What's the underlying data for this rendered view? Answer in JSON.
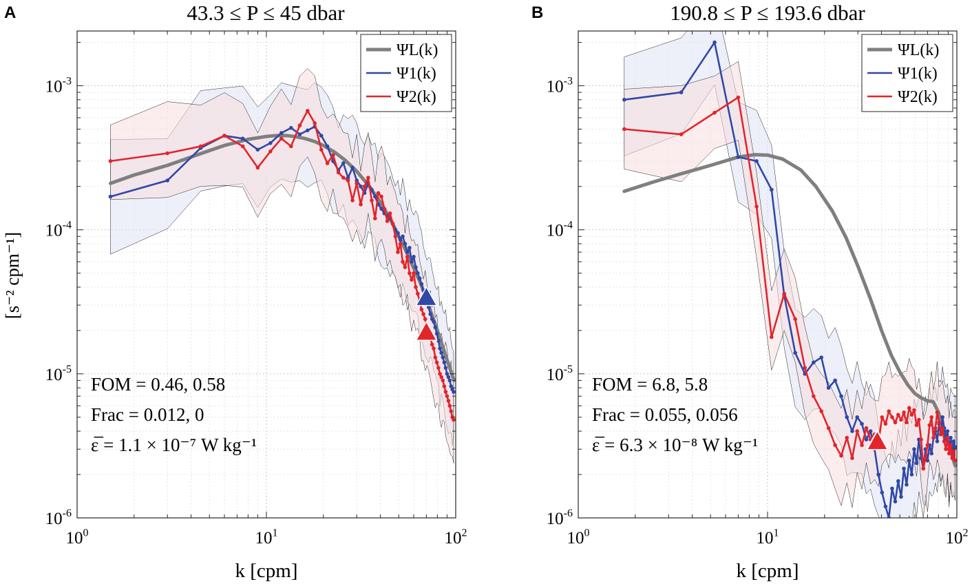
{
  "colors": {
    "model": "#7f7f7f",
    "psi1": "#3048a8",
    "psi2": "#e3242b",
    "ci1_fill": "#dfe2f4",
    "ci2_fill": "#f8dede",
    "text": "#000000"
  },
  "axis": {
    "xlabel": "k  [cpm]",
    "ylabel": "[s⁻² cpm⁻¹]"
  },
  "chart_data": [
    {
      "type": "line",
      "panel_letter": "A",
      "title": "43.3 ≤ P ≤ 45 dbar",
      "xscale": "log",
      "yscale": "log",
      "xlim": [
        1,
        100
      ],
      "ylim": [
        1e-06,
        0.0024
      ],
      "xticks": [
        "10^0",
        "10^1",
        "10^2"
      ],
      "yticks": [
        "10^-6",
        "10^-5",
        "10^-4",
        "10^-3"
      ],
      "legend_position": "top-right",
      "legend": [
        "ΨL(k)",
        "Ψ1(k)",
        "Ψ2(k)"
      ],
      "annotations": [
        "FOM = 0.46,  0.58",
        "Frac = 0.012,  0",
        "ε̅ = 1.1 × 10⁻⁷ W kg⁻¹"
      ],
      "model": {
        "x": [
          1.5,
          2,
          3,
          4,
          5,
          6,
          7,
          8,
          9,
          10,
          11,
          12,
          13,
          14,
          16,
          18,
          20,
          23,
          26,
          30,
          35,
          40,
          45,
          50,
          55,
          60,
          65,
          70,
          80,
          90,
          98
        ],
        "y": [
          0.00021,
          0.00024,
          0.00028,
          0.00032,
          0.000355,
          0.000385,
          0.000405,
          0.000425,
          0.000435,
          0.000445,
          0.00045,
          0.000452,
          0.00045,
          0.000445,
          0.00043,
          0.00041,
          0.000385,
          0.000345,
          0.000305,
          0.000255,
          0.0002,
          0.000155,
          0.00012,
          9e-05,
          7e-05,
          5.4e-05,
          4.3e-05,
          3.3e-05,
          2e-05,
          1.25e-05,
          9e-06
        ]
      },
      "psi1": {
        "x": [
          1.5,
          3,
          4.5,
          6,
          7.5,
          9,
          10.5,
          12,
          13.5,
          15,
          16.5,
          18,
          19.5,
          21,
          22.5,
          24,
          25.5,
          27,
          28.5,
          30,
          31.5,
          33,
          34.5,
          36,
          37.5,
          39,
          40.5,
          42,
          43.5,
          45,
          46.5,
          48,
          49.5,
          51,
          52.5,
          54,
          55.5,
          57,
          58.5,
          60,
          61.5,
          63,
          64.5,
          66,
          67.5,
          69,
          70.5,
          72,
          73.5,
          75,
          76.5,
          78,
          79.5,
          81,
          82.5,
          84,
          85.5,
          87,
          88.5,
          90,
          91.5,
          93,
          94.5,
          96,
          97.5
        ],
        "y": [
          0.00017,
          0.00022,
          0.00037,
          0.00045,
          0.00043,
          0.00036,
          0.0004,
          0.00047,
          0.00051,
          0.00046,
          0.00049,
          0.00052,
          0.00045,
          0.00038,
          0.0003,
          0.00026,
          0.00029,
          0.00023,
          0.00027,
          0.00022,
          0.0002,
          0.00018,
          0.00021,
          0.00019,
          0.00017,
          0.00015,
          0.00014,
          0.00013,
          0.000125,
          0.00012,
          0.00011,
          0.0001,
          9.5e-05,
          8.5e-05,
          9e-05,
          8e-05,
          7e-05,
          7.5e-05,
          6e-05,
          6.5e-05,
          5.5e-05,
          5e-05,
          4.6e-05,
          4.2e-05,
          3.8e-05,
          3.4e-05,
          3.2e-05,
          2.9e-05,
          2.6e-05,
          2.4e-05,
          2.3e-05,
          2.1e-05,
          1.9e-05,
          1.7e-05,
          1.5e-05,
          1.4e-05,
          1.3e-05,
          1.2e-05,
          1.1e-05,
          1e-05,
          9.5e-06,
          9e-06,
          8.2e-06,
          7.8e-06,
          7.5e-06
        ]
      },
      "psi2": {
        "x": [
          1.5,
          3,
          4.5,
          6,
          7.5,
          9,
          10.5,
          12,
          13.5,
          15,
          16.5,
          18,
          19.5,
          21,
          22.5,
          24,
          25.5,
          27,
          28.5,
          30,
          31.5,
          33,
          34.5,
          36,
          37.5,
          39,
          40.5,
          42,
          43.5,
          45,
          46.5,
          48,
          49.5,
          51,
          52.5,
          54,
          55.5,
          57,
          58.5,
          60,
          61.5,
          63,
          64.5,
          66,
          67.5,
          69,
          70.5,
          72,
          73.5,
          75,
          76.5,
          78,
          79.5,
          81,
          82.5,
          84,
          85.5,
          87,
          88.5,
          90,
          91.5,
          93,
          94.5,
          96,
          97.5
        ],
        "y": [
          0.0003,
          0.00034,
          0.00038,
          0.00045,
          0.00038,
          0.00027,
          0.00035,
          0.00043,
          0.00038,
          0.00053,
          0.00067,
          0.00055,
          0.00036,
          0.00029,
          0.00033,
          0.00025,
          0.00023,
          0.00022,
          0.00016,
          0.00021,
          0.00015,
          0.0002,
          0.00023,
          0.00016,
          0.00012,
          0.00018,
          0.00017,
          0.00014,
          0.000115,
          0.00013,
          0.00011,
          9e-05,
          7e-05,
          8e-05,
          6e-05,
          5.5e-05,
          6.5e-05,
          5e-05,
          4.5e-05,
          5e-05,
          4e-05,
          3.6e-05,
          3.2e-05,
          2.8e-05,
          2.6e-05,
          2.4e-05,
          2.1e-05,
          1.9e-05,
          1.8e-05,
          1.6e-05,
          1.5e-05,
          1.3e-05,
          1.2e-05,
          1.1e-05,
          1e-05,
          9.5e-06,
          9e-06,
          8.2e-06,
          7.5e-06,
          7e-06,
          6.5e-06,
          6e-06,
          5.5e-06,
          5e-06,
          4.8e-06
        ]
      },
      "markers": [
        {
          "series": "psi1",
          "x": 70,
          "y": 3.4e-05
        },
        {
          "series": "psi2",
          "x": 70,
          "y": 1.95e-05
        }
      ]
    },
    {
      "type": "line",
      "panel_letter": "B",
      "title": "190.8 ≤ P ≤ 193.6 dbar",
      "xscale": "log",
      "yscale": "log",
      "xlim": [
        1,
        100
      ],
      "ylim": [
        1e-06,
        0.0024
      ],
      "xticks": [
        "10^0",
        "10^1",
        "10^2"
      ],
      "yticks": [
        "10^-6",
        "10^-5",
        "10^-4",
        "10^-3"
      ],
      "legend_position": "top-right",
      "legend": [
        "ΨL(k)",
        "Ψ1(k)",
        "Ψ2(k)"
      ],
      "annotations": [
        "FOM = 6.8,  5.8",
        "Frac = 0.055,  0.056",
        "ε̅ = 6.3 × 10⁻⁸ W kg⁻¹"
      ],
      "model": {
        "x": [
          1.75,
          2.5,
          3.5,
          5,
          7,
          8.5,
          10,
          12,
          15,
          18,
          22,
          26,
          30,
          35,
          40,
          45,
          50,
          55,
          60,
          65,
          70,
          75,
          80,
          90,
          98
        ],
        "y": [
          0.000185,
          0.000215,
          0.000245,
          0.00028,
          0.00032,
          0.000332,
          0.00033,
          0.00031,
          0.00026,
          0.0002,
          0.000135,
          8.8e-05,
          5.6e-05,
          3.3e-05,
          2e-05,
          1.35e-05,
          1.03e-05,
          8.4e-06,
          7.3e-06,
          6.8e-06,
          6.5e-06,
          6.4e-06,
          5.4e-06,
          3.3e-06,
          2.3e-06
        ]
      },
      "psi1": {
        "x": [
          1.75,
          3.5,
          5.25,
          7,
          8.75,
          10.5,
          12.25,
          14,
          15.75,
          17.5,
          19.25,
          21,
          22.75,
          24.5,
          26.25,
          28,
          29.75,
          31.5,
          33.25,
          35,
          36.75,
          38.5,
          40.25,
          42,
          43.75,
          45.5,
          47.25,
          49,
          50.75,
          52.5,
          54.25,
          56,
          57.75,
          59.5,
          61.25,
          63,
          64.75,
          66.5,
          68.25,
          70,
          71.75,
          73.5,
          75.25,
          77,
          78.75,
          80.5,
          82.25,
          84,
          85.75,
          87.5,
          89.25,
          91,
          92.75,
          94.5,
          96.25,
          98
        ],
        "y": [
          0.0008,
          0.0009,
          0.002,
          0.00032,
          0.0003,
          0.00019,
          3.5e-05,
          1.4e-05,
          1e-05,
          1.2e-05,
          1.3e-05,
          8e-06,
          9e-06,
          7e-06,
          5e-06,
          4e-06,
          5e-06,
          4.5e-06,
          3.5e-06,
          4e-06,
          3e-06,
          2e-06,
          1.5e-06,
          1.2e-06,
          1e-06,
          1.6e-06,
          1.3e-06,
          1.8e-06,
          1.4e-06,
          2.2e-06,
          1.7e-06,
          2.5e-06,
          2e-06,
          3e-06,
          2.4e-06,
          3.5e-06,
          2.6e-06,
          2.2e-06,
          3e-06,
          2.5e-06,
          3.2e-06,
          2.8e-06,
          3.6e-06,
          4e-06,
          3.4e-06,
          4.5e-06,
          3.8e-06,
          5e-06,
          4.2e-06,
          3.5e-06,
          4e-06,
          3e-06,
          3.6e-06,
          3e-06,
          3.4e-06,
          3.1e-06
        ]
      },
      "psi2": {
        "x": [
          1.75,
          3.5,
          5.25,
          7,
          8.75,
          10.5,
          12.25,
          14,
          15.75,
          17.5,
          19.25,
          21,
          22.75,
          24.5,
          26.25,
          28,
          29.75,
          31.5,
          33.25,
          35,
          36.75,
          38.5,
          40.25,
          42,
          43.75,
          45.5,
          47.25,
          49,
          50.75,
          52.5,
          54.25,
          56,
          57.75,
          59.5,
          61.25,
          63,
          64.75,
          66.5,
          68.25,
          70,
          71.75,
          73.5,
          75.25,
          77,
          78.75,
          80.5,
          82.25,
          84,
          85.75,
          87.5,
          89.25,
          91,
          92.75,
          94.5,
          96.25,
          98
        ],
        "y": [
          0.0005,
          0.00046,
          0.00065,
          0.00083,
          0.000145,
          1.8e-05,
          3.6e-05,
          2.4e-05,
          1.1e-05,
          7e-06,
          5.5e-06,
          4.2e-06,
          3.2e-06,
          2.7e-06,
          3.6e-06,
          2.6e-06,
          4e-06,
          3.2e-06,
          4.2e-06,
          3.5e-06,
          3.8e-06,
          3.3e-06,
          5e-06,
          4.5e-06,
          5.5e-06,
          5e-06,
          4.6e-06,
          5.2e-06,
          4.8e-06,
          5.4e-06,
          4.6e-06,
          5.8e-06,
          5.2e-06,
          5.6e-06,
          4.4e-06,
          4.8e-06,
          3.5e-06,
          2.2e-06,
          2.6e-06,
          3.2e-06,
          4.4e-06,
          5e-06,
          3.6e-06,
          4.2e-06,
          5.4e-06,
          4.6e-06,
          3.8e-06,
          4.2e-06,
          3.4e-06,
          3e-06,
          3.6e-06,
          2.8e-06,
          3.2e-06,
          2.6e-06,
          2.9e-06,
          2.5e-06
        ]
      },
      "markers": [
        {
          "series": "psi1",
          "x": 38,
          "y": 3.45e-06
        },
        {
          "series": "psi2",
          "x": 38,
          "y": 3.4e-06
        }
      ]
    }
  ]
}
